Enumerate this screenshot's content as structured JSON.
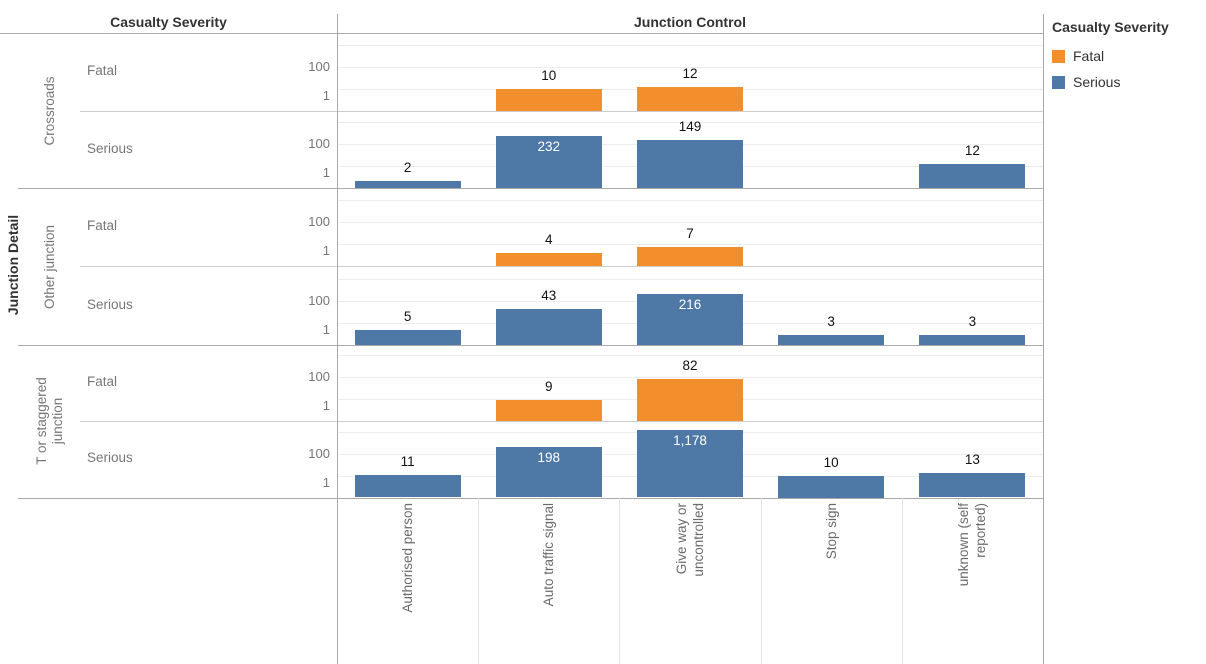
{
  "headers": {
    "row_header": "Casualty Severity",
    "col_header": "Junction Control",
    "row_axis_title": "Junction Detail"
  },
  "legend": {
    "title": "Casualty Severity",
    "items": [
      {
        "label": "Fatal",
        "color": "#f28e2b"
      },
      {
        "label": "Serious",
        "color": "#4e79a7"
      }
    ]
  },
  "chart_data": {
    "type": "bar",
    "y_scale": "log",
    "ylim": [
      1,
      1000
    ],
    "y_tick_labels": [
      "100",
      "1"
    ],
    "grid": "horizontal-faint",
    "legend_position": "top-right",
    "categories": [
      "Authorised person",
      "Auto traffic signal",
      "Give way or uncontrolled",
      "Stop sign",
      "unknown (self reported)"
    ],
    "row_groups": [
      "Crossroads",
      "Other junction",
      "T or staggered junction"
    ],
    "severity_levels": [
      "Fatal",
      "Serious"
    ],
    "series_colors": {
      "Fatal": "#f28e2b",
      "Serious": "#4e79a7"
    },
    "rows": [
      {
        "group": "Crossroads",
        "severity": "Fatal",
        "values": [
          null,
          10,
          12,
          null,
          null
        ]
      },
      {
        "group": "Crossroads",
        "severity": "Serious",
        "values": [
          2,
          232,
          149,
          null,
          12
        ]
      },
      {
        "group": "Other junction",
        "severity": "Fatal",
        "values": [
          null,
          4,
          7,
          null,
          null
        ]
      },
      {
        "group": "Other junction",
        "severity": "Serious",
        "values": [
          5,
          43,
          216,
          3,
          3
        ]
      },
      {
        "group": "T or staggered junction",
        "severity": "Fatal",
        "values": [
          null,
          9,
          82,
          null,
          null
        ]
      },
      {
        "group": "T or staggered junction",
        "severity": "Serious",
        "values": [
          11,
          198,
          1178,
          10,
          13
        ]
      }
    ]
  }
}
